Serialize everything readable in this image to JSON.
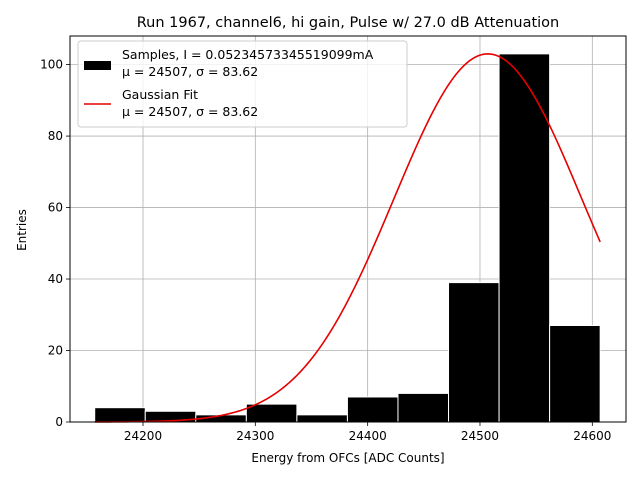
{
  "chart_data": {
    "type": "bar",
    "title": "Run 1967, channel6, hi gain, Pulse w/ 27.0 dB Attenuation",
    "xlabel": "Energy from OFCs [ADC Counts]",
    "ylabel": "Entries",
    "xlim": [
      24135,
      24630
    ],
    "ylim": [
      0,
      108
    ],
    "xticks": [
      24200,
      24300,
      24400,
      24500,
      24600
    ],
    "yticks": [
      0,
      20,
      40,
      60,
      80,
      100
    ],
    "grid": true,
    "legend_position": "top-left",
    "histogram": {
      "name": "Samples",
      "bin_edges": [
        24157,
        24202,
        24247,
        24292,
        24337,
        24382,
        24427,
        24472,
        24517,
        24562,
        24607
      ],
      "counts": [
        4,
        3,
        2,
        5,
        2,
        7,
        8,
        39,
        103,
        27
      ],
      "color": "#000000",
      "edgecolor": "#ffffff"
    },
    "fit": {
      "name": "Gaussian Fit",
      "type": "line",
      "mu": 24507,
      "sigma": 83.62,
      "amplitude": 103,
      "x_range": [
        24157,
        24607
      ],
      "color": "#e60000"
    },
    "legend": [
      {
        "kind": "bar",
        "label_line1": "Samples, I = 0.05234573345519099mA",
        "label_line2": "μ = 24507, σ = 83.62",
        "color": "#000000"
      },
      {
        "kind": "line",
        "label_line1": "Gaussian Fit",
        "label_line2": "μ = 24507, σ = 83.62",
        "color": "#e60000"
      }
    ]
  }
}
